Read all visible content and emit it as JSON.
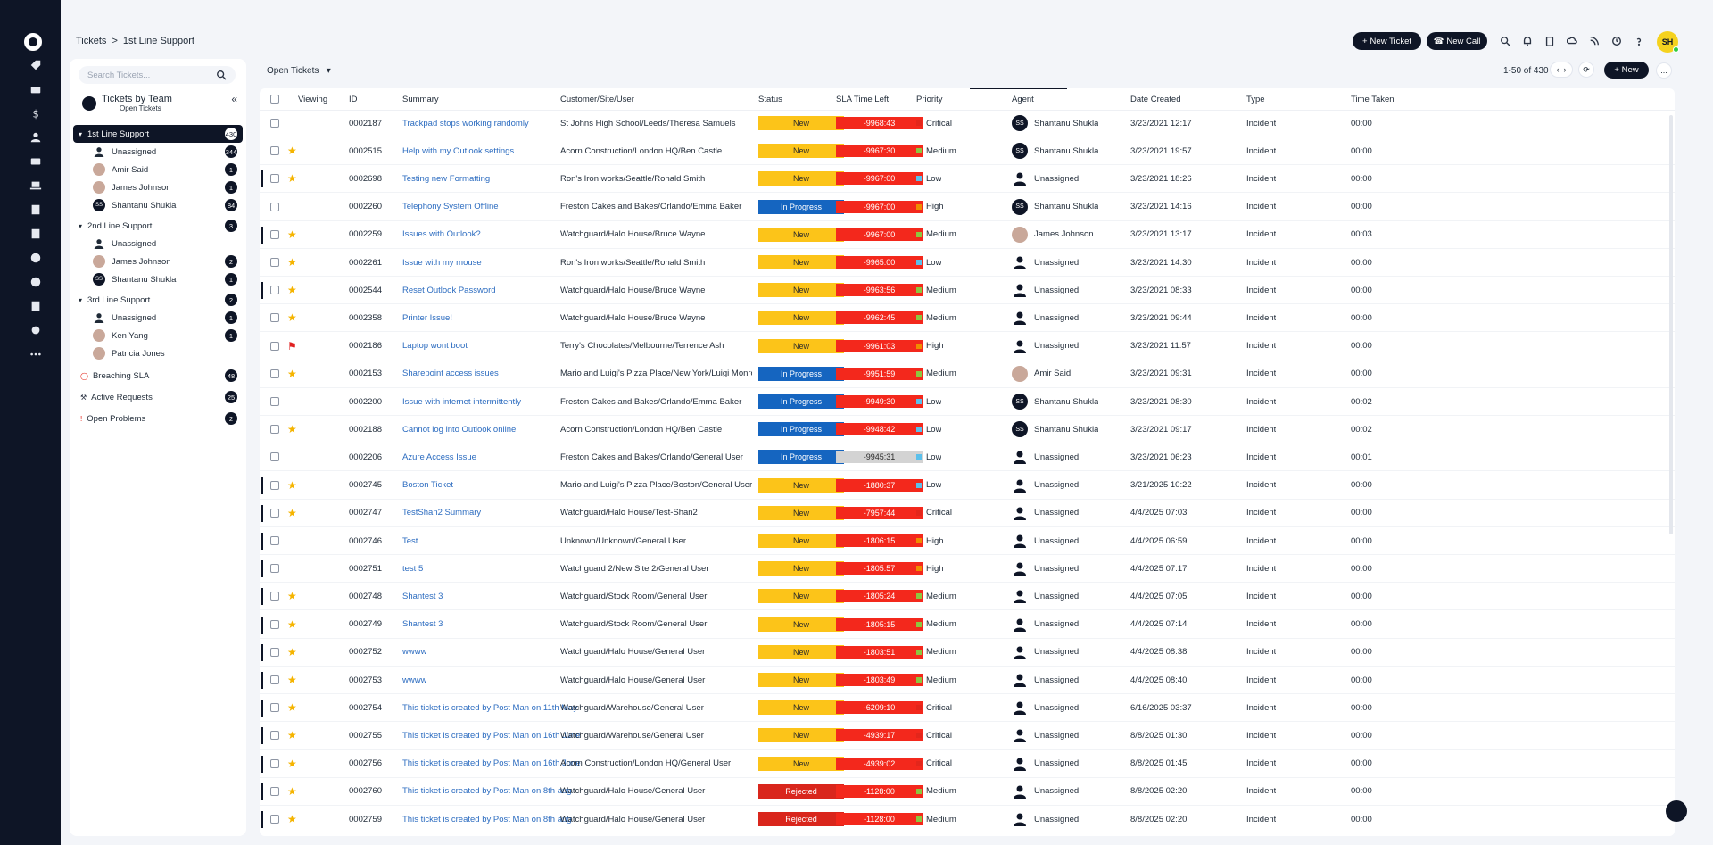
{
  "breadcrumb": {
    "root": "Tickets",
    "sep": ">",
    "current": "1st Line Support"
  },
  "toolbar": {
    "new_ticket": "New Ticket",
    "new_call": "New Call",
    "user_initials": "SH"
  },
  "sidebar": {
    "search_placeholder": "Search Tickets...",
    "heading": "Tickets by Team",
    "subheading": "Open Tickets",
    "teams": [
      {
        "label": "1st Line Support",
        "count": "430",
        "members": [
          {
            "label": "Unassigned",
            "count": "344",
            "avatar": "unassigned"
          },
          {
            "label": "Amir Said",
            "count": "1",
            "avatar": "photo"
          },
          {
            "label": "James Johnson",
            "count": "1",
            "avatar": "photo"
          },
          {
            "label": "Shantanu Shukla",
            "count": "84",
            "avatar": "SS"
          }
        ]
      },
      {
        "label": "2nd Line Support",
        "count": "3",
        "members": [
          {
            "label": "Unassigned",
            "count": "",
            "avatar": "unassigned"
          },
          {
            "label": "James Johnson",
            "count": "2",
            "avatar": "photo"
          },
          {
            "label": "Shantanu Shukla",
            "count": "1",
            "avatar": "SS"
          }
        ]
      },
      {
        "label": "3rd Line Support",
        "count": "2",
        "members": [
          {
            "label": "Unassigned",
            "count": "1",
            "avatar": "unassigned"
          },
          {
            "label": "Ken Yang",
            "count": "1",
            "avatar": "photo"
          },
          {
            "label": "Patricia Jones",
            "count": "",
            "avatar": "photo"
          }
        ]
      }
    ],
    "extras": [
      {
        "label": "Breaching SLA",
        "count": "48"
      },
      {
        "label": "Active Requests",
        "count": "25"
      },
      {
        "label": "Open Problems",
        "count": "2"
      }
    ]
  },
  "list": {
    "view": "Open Tickets",
    "pager": "1-50 of 430",
    "new_label": "New",
    "more_label": "...",
    "columns": [
      "Viewing",
      "ID",
      "Summary",
      "Customer/Site/User",
      "Status",
      "SLA Time Left",
      "Priority",
      "Agent",
      "Date Created",
      "Type",
      "Time Taken"
    ],
    "rows": [
      {
        "mark": false,
        "icon": "",
        "id": "0002187",
        "summary": "Trackpad stops working randomly",
        "customer": "St Johns High School/Leeds/Theresa Samuels",
        "status": "New",
        "sla": "-9968:43",
        "priority": "Critical",
        "agent": "Shantanu Shukla",
        "agent_av": "SS",
        "date": "3/23/2021 12:17",
        "type": "Incident",
        "time": "00:00"
      },
      {
        "mark": false,
        "icon": "star",
        "id": "0002515",
        "summary": "Help with my Outlook settings",
        "customer": "Acorn Construction/London HQ/Ben Castle",
        "status": "New",
        "sla": "-9967:30",
        "priority": "Medium",
        "agent": "Shantanu Shukla",
        "agent_av": "SS",
        "date": "3/23/2021 19:57",
        "type": "Incident",
        "time": "00:00"
      },
      {
        "mark": true,
        "icon": "star",
        "id": "0002698",
        "summary": "Testing new Formatting",
        "customer": "Ron's Iron works/Seattle/Ronald Smith",
        "status": "New",
        "sla": "-9967:00",
        "priority": "Low",
        "agent": "Unassigned",
        "agent_av": "un",
        "date": "3/23/2021 18:26",
        "type": "Incident",
        "time": "00:00"
      },
      {
        "mark": false,
        "icon": "",
        "id": "0002260",
        "summary": "Telephony System Offline",
        "customer": "Freston Cakes and Bakes/Orlando/Emma Baker",
        "status": "In Progress",
        "sla": "-9967:00",
        "priority": "High",
        "agent": "Shantanu Shukla",
        "agent_av": "SS",
        "date": "3/23/2021 14:16",
        "type": "Incident",
        "time": "00:00"
      },
      {
        "mark": true,
        "icon": "star",
        "id": "0002259",
        "summary": "Issues with Outlook?",
        "customer": "Watchguard/Halo House/Bruce Wayne",
        "status": "New",
        "sla": "-9967:00",
        "priority": "Medium",
        "agent": "James Johnson",
        "agent_av": "photo",
        "date": "3/23/2021 13:17",
        "type": "Incident",
        "time": "00:03"
      },
      {
        "mark": false,
        "icon": "star",
        "id": "0002261",
        "summary": "Issue with my mouse",
        "customer": "Ron's Iron works/Seattle/Ronald Smith",
        "status": "New",
        "sla": "-9965:00",
        "priority": "Low",
        "agent": "Unassigned",
        "agent_av": "un",
        "date": "3/23/2021 14:30",
        "type": "Incident",
        "time": "00:00"
      },
      {
        "mark": true,
        "icon": "star",
        "id": "0002544",
        "summary": "Reset Outlook Password",
        "customer": "Watchguard/Halo House/Bruce Wayne",
        "status": "New",
        "sla": "-9963:56",
        "priority": "Medium",
        "agent": "Unassigned",
        "agent_av": "un",
        "date": "3/23/2021 08:33",
        "type": "Incident",
        "time": "00:00"
      },
      {
        "mark": false,
        "icon": "star",
        "id": "0002358",
        "summary": "Printer Issue!",
        "customer": "Watchguard/Halo House/Bruce Wayne",
        "status": "New",
        "sla": "-9962:45",
        "priority": "Medium",
        "agent": "Unassigned",
        "agent_av": "un",
        "date": "3/23/2021 09:44",
        "type": "Incident",
        "time": "00:00"
      },
      {
        "mark": false,
        "icon": "flag",
        "id": "0002186",
        "summary": "Laptop wont boot",
        "customer": "Terry's Chocolates/Melbourne/Terrence Ash",
        "status": "New",
        "sla": "-9961:03",
        "priority": "High",
        "agent": "Unassigned",
        "agent_av": "un",
        "date": "3/23/2021 11:57",
        "type": "Incident",
        "time": "00:00"
      },
      {
        "mark": false,
        "icon": "star",
        "id": "0002153",
        "summary": "Sharepoint access issues",
        "customer": "Mario and Luigi's Pizza Place/New York/Luigi Monroe",
        "status": "In Progress",
        "sla": "-9951:59",
        "priority": "Medium",
        "agent": "Amir Said",
        "agent_av": "photo",
        "date": "3/23/2021 09:31",
        "type": "Incident",
        "time": "00:00"
      },
      {
        "mark": false,
        "icon": "",
        "id": "0002200",
        "summary": "Issue with internet intermittently",
        "customer": "Freston Cakes and Bakes/Orlando/Emma Baker",
        "status": "In Progress",
        "sla": "-9949:30",
        "priority": "Low",
        "agent": "Shantanu Shukla",
        "agent_av": "SS",
        "date": "3/23/2021 08:30",
        "type": "Incident",
        "time": "00:02"
      },
      {
        "mark": false,
        "icon": "star",
        "id": "0002188",
        "summary": "Cannot log into Outlook online",
        "customer": "Acorn Construction/London HQ/Ben Castle",
        "status": "In Progress",
        "sla": "-9948:42",
        "priority": "Low",
        "agent": "Shantanu Shukla",
        "agent_av": "SS",
        "date": "3/23/2021 09:17",
        "type": "Incident",
        "time": "00:02"
      },
      {
        "mark": false,
        "icon": "",
        "id": "0002206",
        "summary": "Azure Access Issue",
        "customer": "Freston Cakes and Bakes/Orlando/General User",
        "status": "In Progress",
        "sla": "-9945:31",
        "sla_grey": true,
        "priority": "Low",
        "agent": "Unassigned",
        "agent_av": "un",
        "date": "3/23/2021 06:23",
        "type": "Incident",
        "time": "00:01"
      },
      {
        "mark": true,
        "icon": "star",
        "id": "0002745",
        "summary": "Boston Ticket",
        "customer": "Mario and Luigi's Pizza Place/Boston/General User",
        "status": "New",
        "sla": "-1880:37",
        "priority": "Low",
        "agent": "Unassigned",
        "agent_av": "un",
        "date": "3/21/2025 10:22",
        "type": "Incident",
        "time": "00:00"
      },
      {
        "mark": true,
        "icon": "star",
        "id": "0002747",
        "summary": "TestShan2 Summary",
        "customer": "Watchguard/Halo House/Test-Shan2",
        "status": "New",
        "sla": "-7957:44",
        "priority": "Critical",
        "agent": "Unassigned",
        "agent_av": "un",
        "date": "4/4/2025 07:03",
        "type": "Incident",
        "time": "00:00"
      },
      {
        "mark": true,
        "icon": "",
        "id": "0002746",
        "summary": "Test",
        "customer": "Unknown/Unknown/General User",
        "status": "New",
        "sla": "-1806:15",
        "priority": "High",
        "agent": "Unassigned",
        "agent_av": "un",
        "date": "4/4/2025 06:59",
        "type": "Incident",
        "time": "00:00"
      },
      {
        "mark": true,
        "icon": "",
        "id": "0002751",
        "summary": "test 5",
        "customer": "Watchguard 2/New Site 2/General User",
        "status": "New",
        "sla": "-1805:57",
        "priority": "High",
        "agent": "Unassigned",
        "agent_av": "un",
        "date": "4/4/2025 07:17",
        "type": "Incident",
        "time": "00:00"
      },
      {
        "mark": true,
        "icon": "star",
        "id": "0002748",
        "summary": "Shantest 3",
        "customer": "Watchguard/Stock Room/General User",
        "status": "New",
        "sla": "-1805:24",
        "priority": "Medium",
        "agent": "Unassigned",
        "agent_av": "un",
        "date": "4/4/2025 07:05",
        "type": "Incident",
        "time": "00:00"
      },
      {
        "mark": true,
        "icon": "star",
        "id": "0002749",
        "summary": "Shantest 3",
        "customer": "Watchguard/Stock Room/General User",
        "status": "New",
        "sla": "-1805:15",
        "priority": "Medium",
        "agent": "Unassigned",
        "agent_av": "un",
        "date": "4/4/2025 07:14",
        "type": "Incident",
        "time": "00:00"
      },
      {
        "mark": true,
        "icon": "star",
        "id": "0002752",
        "summary": "wwww",
        "customer": "Watchguard/Halo House/General User",
        "status": "New",
        "sla": "-1803:51",
        "priority": "Medium",
        "agent": "Unassigned",
        "agent_av": "un",
        "date": "4/4/2025 08:38",
        "type": "Incident",
        "time": "00:00"
      },
      {
        "mark": true,
        "icon": "star",
        "id": "0002753",
        "summary": "wwww",
        "customer": "Watchguard/Halo House/General User",
        "status": "New",
        "sla": "-1803:49",
        "priority": "Medium",
        "agent": "Unassigned",
        "agent_av": "un",
        "date": "4/4/2025 08:40",
        "type": "Incident",
        "time": "00:00"
      },
      {
        "mark": true,
        "icon": "star",
        "id": "0002754",
        "summary": "This ticket is created by Post Man on 11th May",
        "customer": "Watchguard/Warehouse/General User",
        "status": "New",
        "sla": "-6209:10",
        "priority": "Critical",
        "agent": "Unassigned",
        "agent_av": "un",
        "date": "6/16/2025 03:37",
        "type": "Incident",
        "time": "00:00"
      },
      {
        "mark": true,
        "icon": "star",
        "id": "0002755",
        "summary": "This ticket is created by Post Man on 16th June",
        "customer": "Watchguard/Warehouse/General User",
        "status": "New",
        "sla": "-4939:17",
        "priority": "Critical",
        "agent": "Unassigned",
        "agent_av": "un",
        "date": "8/8/2025 01:30",
        "type": "Incident",
        "time": "00:00"
      },
      {
        "mark": true,
        "icon": "star",
        "id": "0002756",
        "summary": "This ticket is created by Post Man on 16th June",
        "customer": "Acorn Construction/London HQ/General User",
        "status": "New",
        "sla": "-4939:02",
        "priority": "Critical",
        "agent": "Unassigned",
        "agent_av": "un",
        "date": "8/8/2025 01:45",
        "type": "Incident",
        "time": "00:00"
      },
      {
        "mark": true,
        "icon": "star",
        "id": "0002760",
        "summary": "This ticket is created by Post Man on 8th aug",
        "customer": "Watchguard/Halo House/General User",
        "status": "Rejected",
        "sla": "-1128:00",
        "priority": "Medium",
        "agent": "Unassigned",
        "agent_av": "un",
        "date": "8/8/2025 02:20",
        "type": "Incident",
        "time": "00:00"
      },
      {
        "mark": true,
        "icon": "star",
        "id": "0002759",
        "summary": "This ticket is created by Post Man on 8th aug",
        "customer": "Watchguard/Halo House/General User",
        "status": "Rejected",
        "sla": "-1128:00",
        "priority": "Medium",
        "agent": "Unassigned",
        "agent_av": "un",
        "date": "8/8/2025 02:20",
        "type": "Incident",
        "time": "00:00"
      }
    ]
  },
  "colors": {
    "status_new": "#fcc419",
    "status_inprogress": "#1565c0",
    "status_rejected": "#d9261c",
    "sla_red": "#f3281c",
    "sla_grey": "#d3d3d3",
    "prio_critical": "#e3261b",
    "prio_high": "#f08c00",
    "prio_medium": "#8dc63f",
    "prio_low": "#5bc0eb"
  }
}
